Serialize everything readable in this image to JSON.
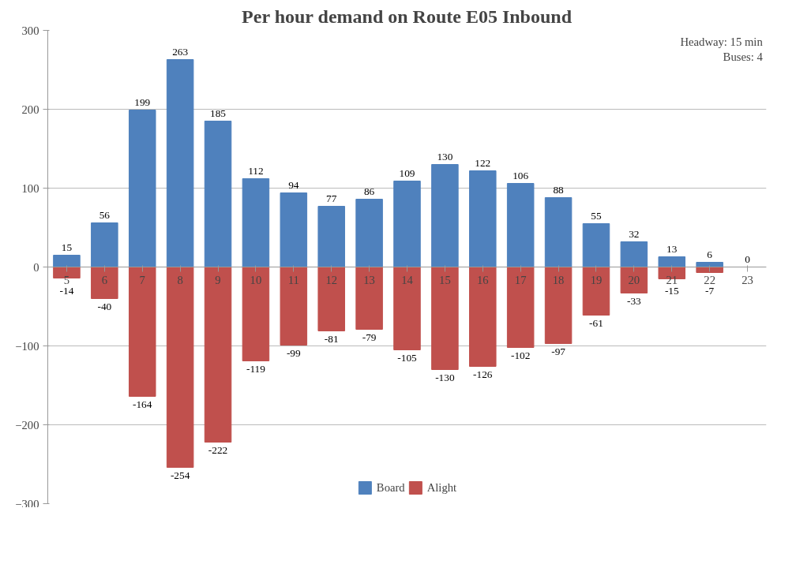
{
  "chart_data": {
    "type": "bar",
    "title": "Per hour demand on Route E05 Inbound",
    "categories": [
      "5",
      "6",
      "7",
      "8",
      "9",
      "10",
      "11",
      "12",
      "13",
      "14",
      "15",
      "16",
      "17",
      "18",
      "19",
      "20",
      "21",
      "22",
      "23"
    ],
    "series": [
      {
        "name": "Board",
        "color": "#4f81bd",
        "values": [
          15,
          56,
          199,
          263,
          185,
          112,
          94,
          77,
          86,
          109,
          130,
          122,
          106,
          88,
          55,
          32,
          13,
          6,
          0
        ],
        "value_labels": [
          "15",
          "56",
          "199",
          "263",
          "185",
          "112",
          "94",
          "77",
          "86",
          "109",
          "130",
          "122",
          "106",
          "88",
          "55",
          "32",
          "13",
          "6",
          "0"
        ]
      },
      {
        "name": "Alight",
        "color": "#c0504d",
        "values": [
          -14,
          -40,
          -164,
          -254,
          -222,
          -119,
          -99,
          -81,
          -79,
          -105,
          -130,
          -126,
          -102,
          -97,
          -61,
          -33,
          -15,
          -7,
          0
        ],
        "value_labels": [
          "-14",
          "-40",
          "-164",
          "-254",
          "-222",
          "-119",
          "-99",
          "-81",
          "-79",
          "-105",
          "-130",
          "-126",
          "-102",
          "-97",
          "-61",
          "-33",
          "-15",
          "-7",
          null
        ]
      }
    ],
    "ylim": [
      -300,
      300
    ],
    "yticks": [
      -300,
      -200,
      -100,
      0,
      100,
      200,
      300
    ],
    "grid": "y",
    "legend": "bottom",
    "stacked": true,
    "annotations": [
      "Headway: 15 min\nBuses: 4"
    ]
  }
}
